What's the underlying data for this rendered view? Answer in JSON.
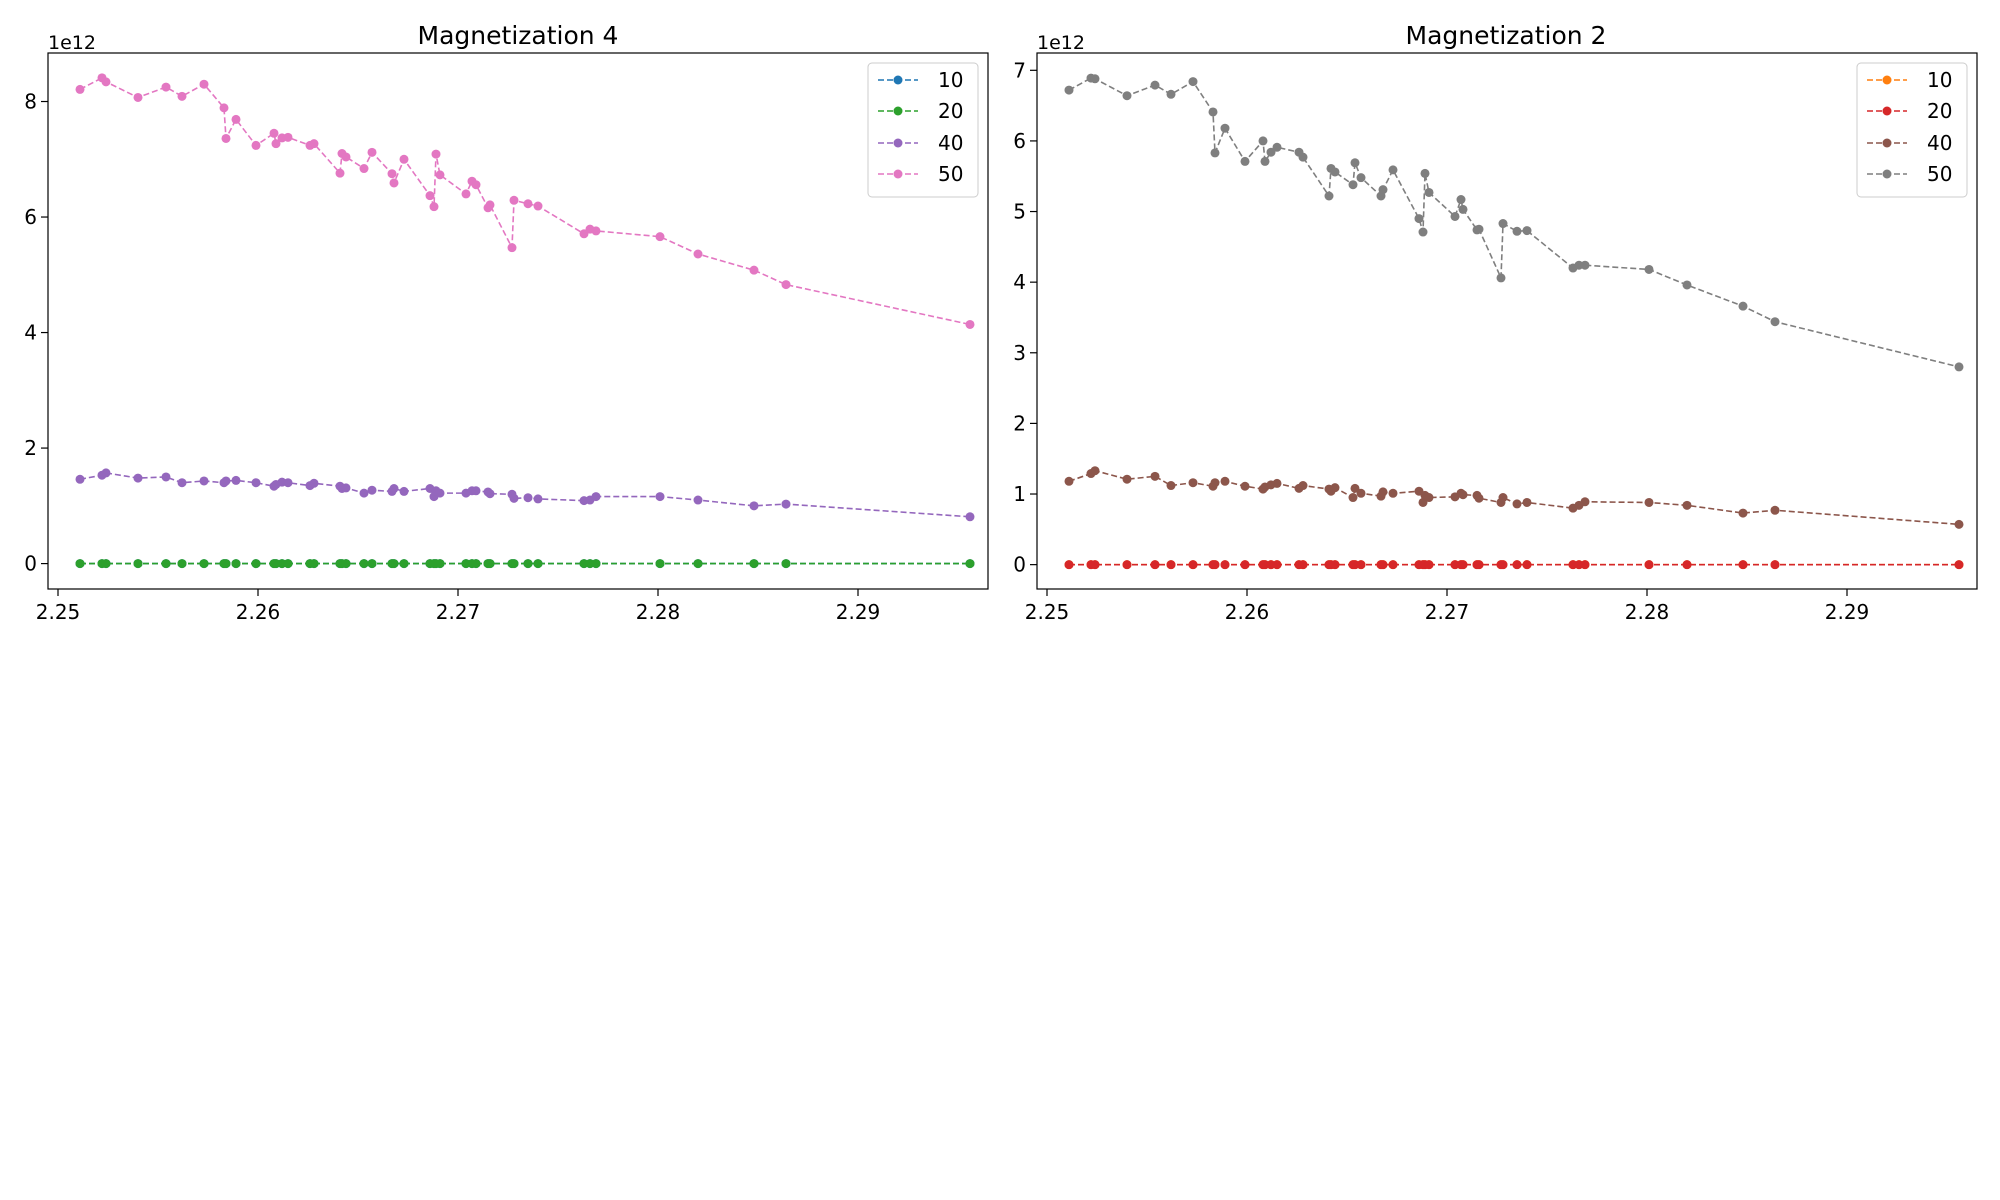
{
  "chart_data": [
    {
      "type": "line",
      "title": "Magnetization 4",
      "xlabel": "",
      "ylabel": "",
      "y_offset_label": "1e12",
      "xlim": [
        2.2495,
        2.2965
      ],
      "ylim": [
        -0.44,
        8.84
      ],
      "x_ticks": [
        2.25,
        2.26,
        2.27,
        2.28,
        2.29
      ],
      "x_tick_labels": [
        "2.25",
        "2.26",
        "2.27",
        "2.28",
        "2.29"
      ],
      "y_ticks": [
        0,
        2,
        4,
        6,
        8
      ],
      "y_tick_labels": [
        "0",
        "2",
        "4",
        "6",
        "8"
      ],
      "legend_position": "top-right",
      "grid": false,
      "x": [
        2.2511,
        2.2522,
        2.2524,
        2.254,
        2.2554,
        2.2562,
        2.2573,
        2.2583,
        2.2584,
        2.2589,
        2.2599,
        2.2608,
        2.2609,
        2.2612,
        2.2615,
        2.2626,
        2.2628,
        2.2641,
        2.2642,
        2.2644,
        2.2653,
        2.2657,
        2.2667,
        2.2668,
        2.2673,
        2.2686,
        2.2688,
        2.2689,
        2.2691,
        2.2704,
        2.2707,
        2.2709,
        2.2715,
        2.2716,
        2.2727,
        2.2728,
        2.2735,
        2.274,
        2.2763,
        2.2766,
        2.2769,
        2.2801,
        2.282,
        2.2848,
        2.2864,
        2.2956
      ],
      "series": [
        {
          "name": "10",
          "color": "#1f77b4",
          "values": [
            0,
            0,
            0,
            0,
            0,
            0,
            0,
            0,
            0,
            0,
            0,
            0,
            0,
            0,
            0,
            0,
            0,
            0,
            0,
            0,
            0,
            0,
            0,
            0,
            0,
            0,
            0,
            0,
            0,
            0,
            0,
            0,
            0,
            0,
            0,
            0,
            0,
            0,
            0,
            0,
            0,
            0,
            0,
            0,
            0,
            0
          ]
        },
        {
          "name": "20",
          "color": "#2ca02c",
          "values": [
            0,
            0,
            0,
            0,
            0,
            0,
            0,
            0,
            0,
            0,
            0,
            0,
            0,
            0,
            0,
            0,
            0,
            0,
            0,
            0,
            0,
            0,
            0,
            0,
            0,
            0,
            0,
            0,
            0,
            0,
            0,
            0,
            0,
            0,
            0,
            0,
            0,
            0,
            0,
            0,
            0,
            0,
            0,
            0,
            0,
            0
          ]
        },
        {
          "name": "40",
          "color": "#9467bd",
          "values": [
            1.46,
            1.53,
            1.57,
            1.48,
            1.5,
            1.4,
            1.43,
            1.4,
            1.43,
            1.44,
            1.4,
            1.34,
            1.37,
            1.41,
            1.4,
            1.35,
            1.39,
            1.34,
            1.3,
            1.31,
            1.22,
            1.27,
            1.25,
            1.3,
            1.25,
            1.3,
            1.16,
            1.26,
            1.22,
            1.22,
            1.26,
            1.26,
            1.24,
            1.21,
            1.2,
            1.13,
            1.14,
            1.12,
            1.09,
            1.1,
            1.16,
            1.16,
            1.1,
            1.0,
            1.03,
            0.81
          ]
        },
        {
          "name": "50",
          "color": "#e377c2",
          "values": [
            8.21,
            8.41,
            8.34,
            8.07,
            8.25,
            8.09,
            8.3,
            7.89,
            7.36,
            7.69,
            7.24,
            7.45,
            7.27,
            7.37,
            7.38,
            7.24,
            7.27,
            6.76,
            7.1,
            7.04,
            6.84,
            7.12,
            6.75,
            6.59,
            7.0,
            6.37,
            6.18,
            7.09,
            6.73,
            6.4,
            6.62,
            6.56,
            6.16,
            6.21,
            5.47,
            6.29,
            6.23,
            6.19,
            5.71,
            5.79,
            5.76,
            5.66,
            5.36,
            5.08,
            4.83,
            4.14
          ]
        }
      ]
    },
    {
      "type": "line",
      "title": "Magnetization 2",
      "xlabel": "",
      "ylabel": "",
      "y_offset_label": "1e12",
      "xlim": [
        2.2495,
        2.2965
      ],
      "ylim": [
        -0.345,
        7.245
      ],
      "x_ticks": [
        2.25,
        2.26,
        2.27,
        2.28,
        2.29
      ],
      "x_tick_labels": [
        "2.25",
        "2.26",
        "2.27",
        "2.28",
        "2.29"
      ],
      "y_ticks": [
        0,
        1,
        2,
        3,
        4,
        5,
        6,
        7
      ],
      "y_tick_labels": [
        "0",
        "1",
        "2",
        "3",
        "4",
        "5",
        "6",
        "7"
      ],
      "legend_position": "top-right",
      "grid": false,
      "x": [
        2.2511,
        2.2522,
        2.2524,
        2.254,
        2.2554,
        2.2562,
        2.2573,
        2.2583,
        2.2584,
        2.2589,
        2.2599,
        2.2608,
        2.2609,
        2.2612,
        2.2615,
        2.2626,
        2.2628,
        2.2641,
        2.2642,
        2.2644,
        2.2653,
        2.2654,
        2.2657,
        2.2667,
        2.2668,
        2.2673,
        2.2686,
        2.2688,
        2.2689,
        2.2691,
        2.2704,
        2.2707,
        2.2708,
        2.2715,
        2.2716,
        2.2727,
        2.2728,
        2.2735,
        2.274,
        2.2763,
        2.2766,
        2.2769,
        2.2801,
        2.282,
        2.2848,
        2.2864,
        2.2956
      ],
      "series": [
        {
          "name": "10",
          "color": "#ff7f0e",
          "values": [
            0,
            0,
            0,
            0,
            0,
            0,
            0,
            0,
            0,
            0,
            0,
            0,
            0,
            0,
            0,
            0,
            0,
            0,
            0,
            0,
            0,
            0,
            0,
            0,
            0,
            0,
            0,
            0,
            0,
            0,
            0,
            0,
            0,
            0,
            0,
            0,
            0,
            0,
            0,
            0,
            0,
            0,
            0,
            0,
            0,
            0,
            0
          ]
        },
        {
          "name": "20",
          "color": "#d62728",
          "values": [
            0,
            0,
            0,
            0,
            0,
            0,
            0,
            0,
            0,
            0,
            0,
            0,
            0,
            0,
            0,
            0,
            0,
            0,
            0,
            0,
            0,
            0,
            0,
            0,
            0,
            0,
            0,
            0,
            0,
            0,
            0,
            0,
            0,
            0,
            0,
            0,
            0,
            0,
            0,
            0,
            0,
            0,
            0,
            0,
            0,
            0,
            0
          ]
        },
        {
          "name": "40",
          "color": "#8c564b",
          "values": [
            1.18,
            1.29,
            1.33,
            1.21,
            1.25,
            1.12,
            1.16,
            1.11,
            1.16,
            1.18,
            1.11,
            1.07,
            1.1,
            1.13,
            1.15,
            1.08,
            1.12,
            1.07,
            1.04,
            1.09,
            0.95,
            1.08,
            1.01,
            0.97,
            1.03,
            1.01,
            1.04,
            0.88,
            0.98,
            0.95,
            0.96,
            1.01,
            0.99,
            0.98,
            0.94,
            0.88,
            0.95,
            0.86,
            0.88,
            0.8,
            0.84,
            0.89,
            0.88,
            0.84,
            0.73,
            0.77,
            0.57
          ]
        },
        {
          "name": "50",
          "color": "#7f7f7f",
          "values": [
            6.72,
            6.89,
            6.88,
            6.64,
            6.79,
            6.66,
            6.84,
            6.41,
            5.83,
            6.18,
            5.71,
            6.0,
            5.71,
            5.84,
            5.91,
            5.84,
            5.77,
            5.22,
            5.61,
            5.56,
            5.38,
            5.69,
            5.48,
            5.22,
            5.31,
            5.59,
            4.9,
            4.71,
            5.54,
            5.27,
            4.93,
            5.17,
            5.03,
            4.74,
            4.75,
            4.06,
            4.83,
            4.72,
            4.73,
            4.2,
            4.24,
            4.24,
            4.18,
            3.96,
            3.66,
            3.44,
            2.8
          ]
        }
      ]
    }
  ]
}
